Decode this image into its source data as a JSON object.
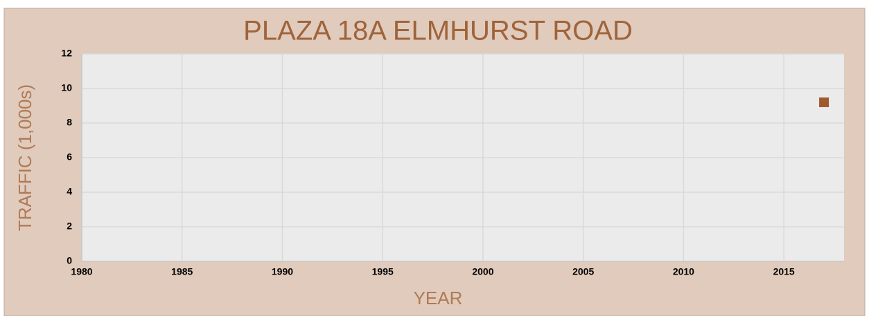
{
  "chart_data": {
    "type": "scatter",
    "title": "PLAZA 18A ELMHURST ROAD",
    "x_label": "YEAR",
    "y_label": "TRAFFIC (1,000s)",
    "series": [
      {
        "name": "Traffic",
        "color": "#a0592f",
        "x": [
          2017
        ],
        "values": [
          9.2
        ]
      }
    ],
    "xlim": [
      1980,
      2018
    ],
    "xticks": [
      1980,
      1985,
      1990,
      1995,
      2000,
      2005,
      2010,
      2015
    ],
    "ylim": [
      0,
      12
    ],
    "yticks": [
      0,
      2,
      4,
      6,
      8,
      10,
      12
    ],
    "grid": true
  }
}
